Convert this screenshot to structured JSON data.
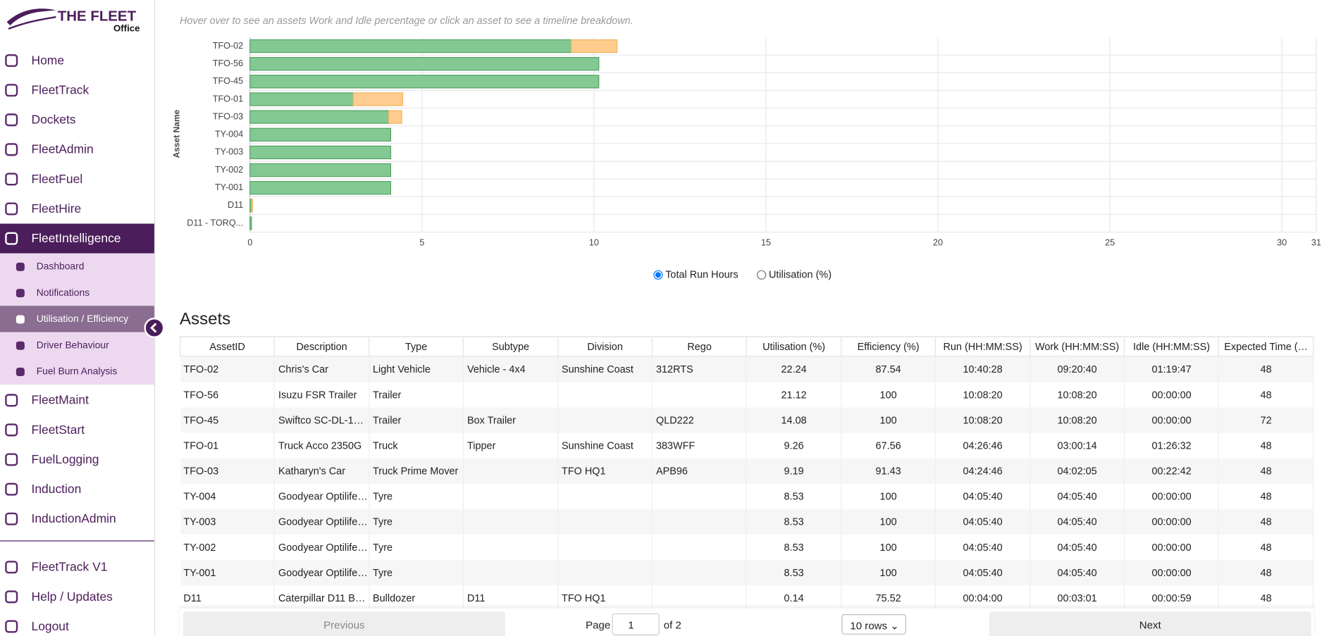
{
  "brand": {
    "title": "THE FLEET",
    "subtitle": "Office"
  },
  "nav": {
    "main": [
      "Home",
      "FleetTrack",
      "Dockets",
      "FleetAdmin",
      "FleetFuel",
      "FleetHire",
      "FleetIntelligence"
    ],
    "sub": [
      "Dashboard",
      "Notifications",
      "Utilisation / Efficiency",
      "Driver Behaviour",
      "Fuel Burn Analysis"
    ],
    "more": [
      "FleetMaint",
      "FleetStart",
      "FuelLogging",
      "Induction",
      "InductionAdmin"
    ],
    "bottom": [
      "FleetTrack V1",
      "Help / Updates",
      "Logout"
    ]
  },
  "chart_data": {
    "type": "bar",
    "orientation": "horizontal",
    "stacked": true,
    "subtitle": "Hover over to see an assets Work and Idle percentage or click an asset to see a timeline breakdown.",
    "y_label": "Asset Name",
    "categories": [
      "TFO-02",
      "TFO-56",
      "TFO-45",
      "TFO-01",
      "TFO-03",
      "TY-004",
      "TY-003",
      "TY-002",
      "TY-001",
      "D11",
      "D11 - TORQ..."
    ],
    "series": [
      {
        "color": "#84c994",
        "values": [
          9.34,
          10.14,
          10.14,
          3.0,
          4.03,
          4.09,
          4.09,
          4.09,
          4.09,
          0.05,
          0.04
        ]
      },
      {
        "color": "#fecc8e",
        "values": [
          1.33,
          0,
          0,
          1.44,
          0.38,
          0,
          0,
          0,
          0,
          0.02,
          0
        ]
      }
    ],
    "xlim": [
      0,
      31
    ],
    "xticks": [
      0,
      5,
      10,
      15,
      20,
      25,
      30,
      31
    ],
    "grid": true
  },
  "view_toggle": {
    "options": [
      "Total Run Hours",
      "Utilisation (%)"
    ]
  },
  "table": {
    "title": "Assets",
    "columns": [
      "AssetID",
      "Description",
      "Type",
      "Subtype",
      "Division",
      "Rego",
      "Utilisation (%)",
      "Efficiency (%)",
      "Run (HH:MM:SS)",
      "Work (HH:MM:SS)",
      "Idle (HH:MM:SS)",
      "Expected Time (…"
    ],
    "rows": [
      [
        "TFO-02",
        "Chris's Car",
        "Light Vehicle",
        "Vehicle - 4x4",
        "Sunshine Coast",
        "312RTS",
        "22.24",
        "87.54",
        "10:40:28",
        "09:20:40",
        "01:19:47",
        "48"
      ],
      [
        "TFO-56",
        "Isuzu FSR Trailer",
        "Trailer",
        "",
        "",
        "",
        "21.12",
        "100",
        "10:08:20",
        "10:08:20",
        "00:00:00",
        "48"
      ],
      [
        "TFO-45",
        "Swiftco SC-DL-1…",
        "Trailer",
        "Box Trailer",
        "",
        "QLD222",
        "14.08",
        "100",
        "10:08:20",
        "10:08:20",
        "00:00:00",
        "72"
      ],
      [
        "TFO-01",
        "Truck Acco 2350G",
        "Truck",
        "Tipper",
        "Sunshine Coast",
        "383WFF",
        "9.26",
        "67.56",
        "04:26:46",
        "03:00:14",
        "01:26:32",
        "48"
      ],
      [
        "TFO-03",
        "Katharyn's Car",
        "Truck Prime Mover",
        "",
        "TFO HQ1",
        "APB96",
        "9.19",
        "91.43",
        "04:24:46",
        "04:02:05",
        "00:22:42",
        "48"
      ],
      [
        "TY-004",
        "Goodyear Optilife…",
        "Tyre",
        "",
        "",
        "",
        "8.53",
        "100",
        "04:05:40",
        "04:05:40",
        "00:00:00",
        "48"
      ],
      [
        "TY-003",
        "Goodyear Optilife…",
        "Tyre",
        "",
        "",
        "",
        "8.53",
        "100",
        "04:05:40",
        "04:05:40",
        "00:00:00",
        "48"
      ],
      [
        "TY-002",
        "Goodyear Optilife…",
        "Tyre",
        "",
        "",
        "",
        "8.53",
        "100",
        "04:05:40",
        "04:05:40",
        "00:00:00",
        "48"
      ],
      [
        "TY-001",
        "Goodyear Optilife…",
        "Tyre",
        "",
        "",
        "",
        "8.53",
        "100",
        "04:05:40",
        "04:05:40",
        "00:00:00",
        "48"
      ],
      [
        "D11",
        "Caterpillar D11 B…",
        "Bulldozer",
        "D11",
        "TFO HQ1",
        "",
        "0.14",
        "75.52",
        "00:04:00",
        "00:03:01",
        "00:00:59",
        "48"
      ]
    ]
  },
  "pagination": {
    "previous": "Previous",
    "page_label": "Page",
    "page": "1",
    "of": "of 2",
    "rows": "10 rows",
    "next": "Next"
  }
}
